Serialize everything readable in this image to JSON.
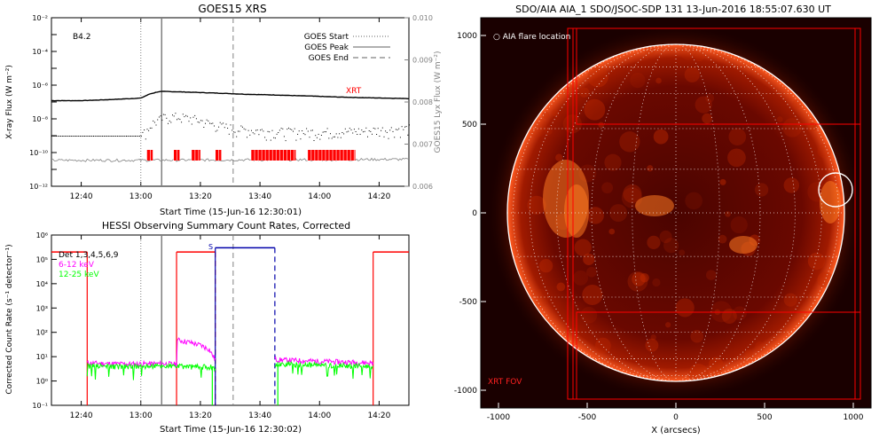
{
  "colors": {
    "goes_flux": "#000000",
    "lyx": "#000000",
    "xrt_bar": "#ff0000",
    "background_curve": "#808080",
    "det_black": "#000000",
    "band_6_12": "#ff00ff",
    "band_12_25": "#00ff00",
    "saa_blue": "#0000aa",
    "night_red": "#ff0000",
    "sun_dark": "#2a0000",
    "sun_mid": "#7a0a00",
    "sun_bright": "#ff4a10",
    "fov_red": "#ff0000"
  },
  "chart_data": [
    {
      "id": "goes",
      "type": "line",
      "title": "GOES15 XRS",
      "xlabel": "Start Time (15-Jun-16 12:30:01)",
      "ylabel": "X-ray Flux (W m⁻²)",
      "ylabel_right": "GOES15 Lyx Flux (W m⁻²)",
      "xlim": [
        "12:30",
        "14:30"
      ],
      "x_ticks": [
        "12:40",
        "13:00",
        "13:20",
        "13:40",
        "14:00",
        "14:20"
      ],
      "y_scale": "log",
      "ylim": [
        1e-12,
        0.01
      ],
      "y_ticks": [
        "10⁻¹²",
        "10⁻¹⁰",
        "10⁻⁸",
        "10⁻⁶",
        "10⁻⁴",
        "10⁻²"
      ],
      "y_right_ticks": [
        "0.006",
        "0.007",
        "0.008",
        "0.009",
        "0.010"
      ],
      "ylim_right": [
        0.006,
        0.01
      ],
      "class_label": "B4.2",
      "legend": [
        {
          "label": "GOES Start",
          "style": "dotted"
        },
        {
          "label": "GOES Peak",
          "style": "solid"
        },
        {
          "label": "GOES End",
          "style": "dashed"
        }
      ],
      "event_lines": {
        "start": "13:00",
        "peak": "13:07",
        "end": "13:31"
      },
      "xrt_label": "XRT",
      "series": [
        {
          "points": [
            [
              "12:30",
              1.2e-07
            ],
            [
              "12:40",
              1.2e-07
            ],
            [
              "12:50",
              1.4e-07
            ],
            [
              "13:00",
              1.7e-07
            ],
            [
              "13:03",
              3e-07
            ],
            [
              "13:06",
              4.1e-07
            ],
            [
              "13:08",
              4.2e-07
            ],
            [
              "13:15",
              3.9e-07
            ],
            [
              "13:25",
              3.4e-07
            ],
            [
              "13:35",
              2.9e-07
            ],
            [
              "13:45",
              2.6e-07
            ],
            [
              "13:55",
              2.3e-07
            ],
            [
              "14:05",
              2e-07
            ],
            [
              "14:15",
              1.8e-07
            ],
            [
              "14:30",
              1.6e-07
            ]
          ]
        },
        {
          "points": [
            [
              "12:30",
              1e-09
            ],
            [
              "12:55",
              1e-09
            ],
            [
              "13:00",
              1e-09
            ],
            [
              "13:04",
              6e-09
            ],
            [
              "13:08",
              1.3e-08
            ],
            [
              "13:12",
              1.4e-08
            ],
            [
              "13:18",
              1e-08
            ],
            [
              "13:24",
              5e-09
            ],
            [
              "13:32",
              2.5e-09
            ],
            [
              "13:45",
              1.8e-09
            ],
            [
              "14:00",
              1.7e-09
            ],
            [
              "14:15",
              2e-09
            ],
            [
              "14:30",
              2.8e-09
            ]
          ]
        },
        {
          "points": [
            [
              "12:30",
              3.5e-11
            ],
            [
              "13:00",
              3.5e-11
            ],
            [
              "13:30",
              3.7e-11
            ],
            [
              "14:00",
              3.8e-11
            ],
            [
              "14:30",
              4e-11
            ]
          ]
        }
      ],
      "xrt_intervals": [
        [
          "13:02",
          "13:04"
        ],
        [
          "13:11",
          "13:13"
        ],
        [
          "13:17",
          "13:20"
        ],
        [
          "13:25",
          "13:27"
        ],
        [
          "13:37",
          "13:52"
        ],
        [
          "13:56",
          "14:12"
        ]
      ]
    },
    {
      "id": "hessi",
      "type": "line",
      "title": "HESSI Observing Summary Count Rates, Corrected",
      "xlabel": "Start Time (15-Jun-16 12:30:02)",
      "ylabel": "Corrected Count Rate (s⁻¹ detector⁻¹)",
      "xlim": [
        "12:30",
        "14:30"
      ],
      "x_ticks": [
        "12:40",
        "13:00",
        "13:20",
        "13:40",
        "14:00",
        "14:20"
      ],
      "y_scale": "log",
      "ylim": [
        0.1,
        1000000.0
      ],
      "y_ticks": [
        "10⁻¹",
        "10⁰",
        "10¹",
        "10²",
        "10³",
        "10⁴",
        "10⁵",
        "10⁶"
      ],
      "legend": [
        {
          "label": "Det 1,3,4,5,6,9",
          "color": "#000000"
        },
        {
          "label": "6-12 keV",
          "color": "#ff00ff"
        },
        {
          "label": "12-25 keV",
          "color": "#00ff00"
        }
      ],
      "saa_label": "S",
      "night_level": 200000.0,
      "saa_level": 300000.0,
      "night_intervals": [
        [
          "12:30",
          "12:42"
        ],
        [
          "13:12",
          "13:25"
        ],
        [
          "14:18",
          "14:30"
        ]
      ],
      "saa_interval": [
        "13:25",
        "13:45"
      ],
      "event_lines": {
        "start": "13:00",
        "peak": "13:07",
        "end": "13:31"
      },
      "series": [
        {
          "name": "6-12 keV",
          "points": [
            [
              "12:42",
              5.5
            ],
            [
              "12:55",
              5.0
            ],
            [
              "13:05",
              5.2
            ],
            [
              "13:12",
              5.0
            ],
            [
              "13:12",
              50
            ],
            [
              "13:16",
              40
            ],
            [
              "13:20",
              30
            ],
            [
              "13:23",
              20
            ],
            [
              "13:24",
              12
            ],
            [
              "13:25",
              8
            ],
            [
              "13:45",
              8
            ],
            [
              "13:46",
              7.5
            ],
            [
              "14:00",
              6.5
            ],
            [
              "14:10",
              6.0
            ],
            [
              "14:18",
              5.5
            ]
          ]
        },
        {
          "name": "12-25 keV",
          "points": [
            [
              "12:42",
              4.2
            ],
            [
              "12:55",
              3.9
            ],
            [
              "13:05",
              4.1
            ],
            [
              "13:12",
              4.0
            ],
            [
              "13:24",
              3.8
            ],
            [
              "13:25",
              3.5
            ],
            [
              "13:45",
              3.5
            ],
            [
              "13:46",
              5.0
            ],
            [
              "14:00",
              4.5
            ],
            [
              "14:10",
              4.2
            ],
            [
              "14:18",
              4.0
            ]
          ]
        }
      ]
    },
    {
      "id": "aia",
      "type": "image",
      "title": "SDO/AIA AIA_1 SDO/JSOC-SDP 131 13-Jun-2016 18:55:07.630 UT",
      "xlabel": "X (arcsecs)",
      "x_ticks": [
        "-1000",
        "-500",
        "0",
        "500",
        "1000"
      ],
      "y_ticks": [
        "1000",
        "500",
        "0",
        "-500",
        "-1000"
      ],
      "xlim": [
        -1100,
        1100
      ],
      "ylim": [
        -1100,
        1100
      ],
      "flare_label": "○ AIA flare location",
      "fov_label": "XRT FOV",
      "flare_location": [
        900,
        130
      ],
      "solar_radius": 950,
      "fov_boxes": [
        {
          "x1": -580,
          "x2": 1010,
          "y1": -1050,
          "y2": 1040
        },
        {
          "x1": -560,
          "x2": 1040,
          "y1": 500,
          "y2": 1040
        },
        {
          "x1": -560,
          "x2": 1040,
          "y1": -1050,
          "y2": -560
        },
        {
          "x1": -610,
          "x2": 1040,
          "y1": -1050,
          "y2": 1040
        }
      ]
    }
  ]
}
